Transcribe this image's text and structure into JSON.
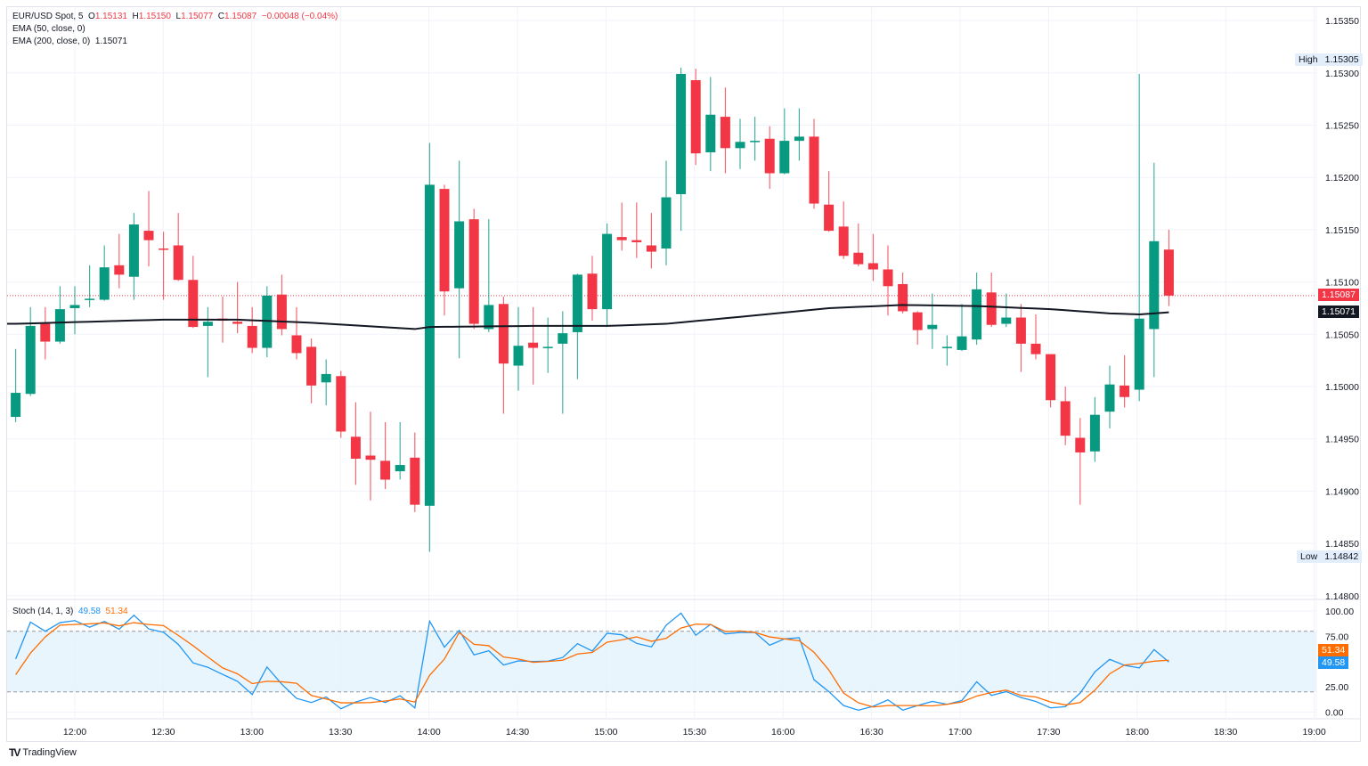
{
  "header": {
    "symbol": "EUR/USD Spot, 5",
    "o_label": "O",
    "o": "1.15131",
    "h_label": "H",
    "h": "1.15150",
    "l_label": "L",
    "l": "1.15077",
    "c_label": "C",
    "c": "1.15087",
    "change": "−0.00048 (−0.04%)",
    "ema50": "EMA (50, close, 0)",
    "ema200": "EMA (200, close, 0)",
    "ema200_value": "1.15071"
  },
  "stoch_legend": {
    "label": "Stoch (14, 1, 3)",
    "k": "49.58",
    "d": "51.34"
  },
  "badges": {
    "high_label": "High",
    "high": "1.15305",
    "low_label": "Low",
    "low": "1.14842",
    "last": "1.15087",
    "ema": "1.15071",
    "stoch_d": "51.34",
    "stoch_k": "49.58"
  },
  "colors": {
    "up": "#089981",
    "down": "#f23645",
    "ema": "#131722",
    "k": "#2196f3",
    "d": "#ff6d00",
    "band": "#e3f2fd"
  },
  "logo": "TradingView",
  "chart_data": [
    {
      "type": "candlestick",
      "title": "EUR/USD Spot, 5",
      "ylim": [
        1.148,
        1.1535
      ],
      "y_ticks": [
        "1.15350",
        "1.15300",
        "1.15250",
        "1.15200",
        "1.15150",
        "1.15100",
        "1.15050",
        "1.15000",
        "1.14950",
        "1.14900",
        "1.14850",
        "1.14800"
      ],
      "x_ticks": [
        "12:00",
        "12:30",
        "13:00",
        "13:30",
        "14:00",
        "14:30",
        "15:00",
        "15:30",
        "16:00",
        "16:30",
        "17:00",
        "17:30",
        "18:00",
        "18:30",
        "19:00"
      ],
      "ohlc": [
        [
          1.14971,
          1.15036,
          1.14966,
          1.14994
        ],
        [
          1.14993,
          1.15076,
          1.14991,
          1.15058
        ],
        [
          1.1506,
          1.15076,
          1.15026,
          1.15043
        ],
        [
          1.15043,
          1.15096,
          1.15041,
          1.15074
        ],
        [
          1.15075,
          1.15096,
          1.1505,
          1.15078
        ],
        [
          1.15083,
          1.15116,
          1.15076,
          1.15084
        ],
        [
          1.15083,
          1.15135,
          1.15082,
          1.15114
        ],
        [
          1.15116,
          1.15146,
          1.15094,
          1.15107
        ],
        [
          1.15105,
          1.15166,
          1.15083,
          1.15155
        ],
        [
          1.15149,
          1.15187,
          1.15115,
          1.1514
        ],
        [
          1.15132,
          1.15148,
          1.15083,
          1.15131
        ],
        [
          1.15135,
          1.15166,
          1.15101,
          1.15102
        ],
        [
          1.15102,
          1.15125,
          1.15056,
          1.15057
        ],
        [
          1.15058,
          1.15076,
          1.15009,
          1.15062
        ],
        [
          1.15065,
          1.15086,
          1.15042,
          1.15063
        ],
        [
          1.15062,
          1.151,
          1.15051,
          1.1506
        ],
        [
          1.15058,
          1.15076,
          1.15032,
          1.15037
        ],
        [
          1.15037,
          1.15096,
          1.15028,
          1.15087
        ],
        [
          1.15088,
          1.15107,
          1.15049,
          1.15055
        ],
        [
          1.15049,
          1.15076,
          1.15026,
          1.15032
        ],
        [
          1.15038,
          1.15046,
          1.14984,
          1.15001
        ],
        [
          1.15004,
          1.15026,
          1.14982,
          1.15012
        ],
        [
          1.1501,
          1.15015,
          1.14951,
          1.14957
        ],
        [
          1.14952,
          1.14985,
          1.14906,
          1.14931
        ],
        [
          1.14934,
          1.14976,
          1.14891,
          1.1493
        ],
        [
          1.14929,
          1.14966,
          1.14902,
          1.14911
        ],
        [
          1.14919,
          1.14966,
          1.14911,
          1.14925
        ],
        [
          1.14932,
          1.14956,
          1.1488,
          1.14887
        ],
        [
          1.14886,
          1.15233,
          1.14842,
          1.15193
        ],
        [
          1.15189,
          1.15193,
          1.15068,
          1.15091
        ],
        [
          1.15094,
          1.15216,
          1.15027,
          1.15158
        ],
        [
          1.1516,
          1.1517,
          1.15055,
          1.1506
        ],
        [
          1.15055,
          1.1516,
          1.15052,
          1.15078
        ],
        [
          1.15079,
          1.15086,
          1.14974,
          1.15022
        ],
        [
          1.1502,
          1.15076,
          1.14996,
          1.15039
        ],
        [
          1.15042,
          1.15076,
          1.15002,
          1.15037
        ],
        [
          1.15037,
          1.15066,
          1.15013,
          1.15038
        ],
        [
          1.15041,
          1.15072,
          1.14974,
          1.15051
        ],
        [
          1.15052,
          1.15108,
          1.15007,
          1.15107
        ],
        [
          1.15108,
          1.15125,
          1.15063,
          1.15074
        ],
        [
          1.15074,
          1.15156,
          1.15057,
          1.15146
        ],
        [
          1.15143,
          1.15176,
          1.1513,
          1.1514
        ],
        [
          1.1514,
          1.15176,
          1.15123,
          1.15138
        ],
        [
          1.15135,
          1.15166,
          1.15113,
          1.15129
        ],
        [
          1.15132,
          1.15216,
          1.15116,
          1.15181
        ],
        [
          1.15184,
          1.15305,
          1.15149,
          1.15299
        ],
        [
          1.15293,
          1.15304,
          1.15212,
          1.15223
        ],
        [
          1.15224,
          1.15296,
          1.15206,
          1.1526
        ],
        [
          1.15258,
          1.15286,
          1.15204,
          1.15228
        ],
        [
          1.15228,
          1.15256,
          1.15208,
          1.15234
        ],
        [
          1.15234,
          1.15258,
          1.15216,
          1.15235
        ],
        [
          1.15237,
          1.15249,
          1.15189,
          1.15204
        ],
        [
          1.15204,
          1.15266,
          1.15203,
          1.15235
        ],
        [
          1.15235,
          1.15266,
          1.15216,
          1.15239
        ],
        [
          1.15239,
          1.15256,
          1.1517,
          1.15175
        ],
        [
          1.15174,
          1.15206,
          1.15148,
          1.15149
        ],
        [
          1.15153,
          1.15177,
          1.15122,
          1.15125
        ],
        [
          1.15128,
          1.15156,
          1.15115,
          1.15117
        ],
        [
          1.15118,
          1.15146,
          1.15101,
          1.15112
        ],
        [
          1.15112,
          1.15135,
          1.15068,
          1.15096
        ],
        [
          1.15098,
          1.15109,
          1.1507,
          1.15072
        ],
        [
          1.15071,
          1.15072,
          1.1504,
          1.15054
        ],
        [
          1.15055,
          1.15089,
          1.15036,
          1.15059
        ],
        [
          1.15037,
          1.15049,
          1.1502,
          1.15038
        ],
        [
          1.15035,
          1.15079,
          1.15034,
          1.15048
        ],
        [
          1.15045,
          1.15109,
          1.1504,
          1.15093
        ],
        [
          1.1509,
          1.15109,
          1.15057,
          1.15059
        ],
        [
          1.1506,
          1.15089,
          1.15057,
          1.15066
        ],
        [
          1.15066,
          1.15079,
          1.15014,
          1.15041
        ],
        [
          1.15041,
          1.15069,
          1.15026,
          1.15031
        ],
        [
          1.15031,
          1.15031,
          1.1498,
          1.14987
        ],
        [
          1.14986,
          1.15,
          1.14944,
          1.14953
        ],
        [
          1.14951,
          1.1497,
          1.14887,
          1.14937
        ],
        [
          1.14938,
          1.1499,
          1.14928,
          1.14973
        ],
        [
          1.14976,
          1.1502,
          1.1496,
          1.15002
        ],
        [
          1.15001,
          1.1503,
          1.1498,
          1.1499
        ],
        [
          1.14997,
          1.15299,
          1.14986,
          1.15065
        ],
        [
          1.15055,
          1.15214,
          1.15009,
          1.15139
        ],
        [
          1.15131,
          1.1515,
          1.15077,
          1.15087
        ]
      ],
      "ema200": [
        [
          0,
          1.1506
        ],
        [
          10,
          1.15064
        ],
        [
          15,
          1.15064
        ],
        [
          20,
          1.15061
        ],
        [
          27,
          1.15055
        ],
        [
          28,
          1.15057
        ],
        [
          35,
          1.15058
        ],
        [
          40,
          1.15058
        ],
        [
          44,
          1.1506
        ],
        [
          50,
          1.15068
        ],
        [
          55,
          1.15075
        ],
        [
          60,
          1.15078
        ],
        [
          65,
          1.15077
        ],
        [
          70,
          1.15074
        ],
        [
          74,
          1.1507
        ],
        [
          76,
          1.15069
        ],
        [
          78,
          1.15071
        ]
      ],
      "last_close": 1.15087
    },
    {
      "type": "line",
      "title": "Stoch (14, 1, 3)",
      "ylim": [
        0,
        100
      ],
      "y_ticks": [
        "100.00",
        "75.00",
        "25.00",
        "0.00"
      ],
      "bands": [
        20,
        80
      ],
      "series": [
        {
          "name": "%K",
          "values": [
            52.5,
            89,
            80,
            88.5,
            90.5,
            84,
            89.7,
            82,
            95.8,
            82.3,
            79,
            67,
            48.7,
            44.3,
            37.3,
            30.5,
            17.4,
            44.6,
            27.6,
            13.6,
            9.5,
            15,
            3.3,
            10,
            14.4,
            9.5,
            16.2,
            4.2,
            90,
            64.2,
            80.9,
            56.6,
            60.7,
            46.6,
            50.7,
            50.1,
            50.4,
            54,
            67.7,
            60.4,
            78,
            76.5,
            68,
            64.5,
            86,
            97.9,
            76,
            86.8,
            77.4,
            78.8,
            78.8,
            66.2,
            72.4,
            73.6,
            32,
            20.3,
            6.5,
            1.9,
            5.7,
            12.1,
            1.9,
            6.5,
            10.6,
            7.7,
            11.5,
            30,
            16.5,
            20.3,
            14.4,
            10.6,
            4.2,
            5.4,
            18.8,
            39.9,
            52.2,
            46.3,
            43.7,
            61.9,
            49.58
          ]
        },
        {
          "name": "%D",
          "values": [
            37,
            58.3,
            74.4,
            86,
            86.7,
            87.3,
            88.2,
            85.3,
            88.5,
            86.7,
            85.6,
            75.9,
            65.7,
            54.5,
            43.7,
            37.9,
            28.2,
            30.5,
            30,
            28.5,
            16.5,
            13,
            9.2,
            9.2,
            9.5,
            11,
            13,
            10,
            36.4,
            52.5,
            78.8,
            67.1,
            65.7,
            54.5,
            52.5,
            49.3,
            50.1,
            51.3,
            57.5,
            59,
            69.2,
            71.5,
            74.4,
            70,
            73,
            83.2,
            87,
            86.7,
            79.7,
            80.3,
            78.8,
            74.4,
            72.4,
            70.6,
            59.2,
            41.7,
            18.8,
            9.2,
            5.1,
            6.5,
            6.5,
            6.5,
            6.2,
            7.7,
            10,
            15.9,
            19.4,
            21.8,
            16.5,
            15,
            10,
            7.1,
            9.5,
            21.8,
            37.9,
            46.6,
            48.1,
            50.4,
            51.34
          ]
        }
      ]
    }
  ]
}
